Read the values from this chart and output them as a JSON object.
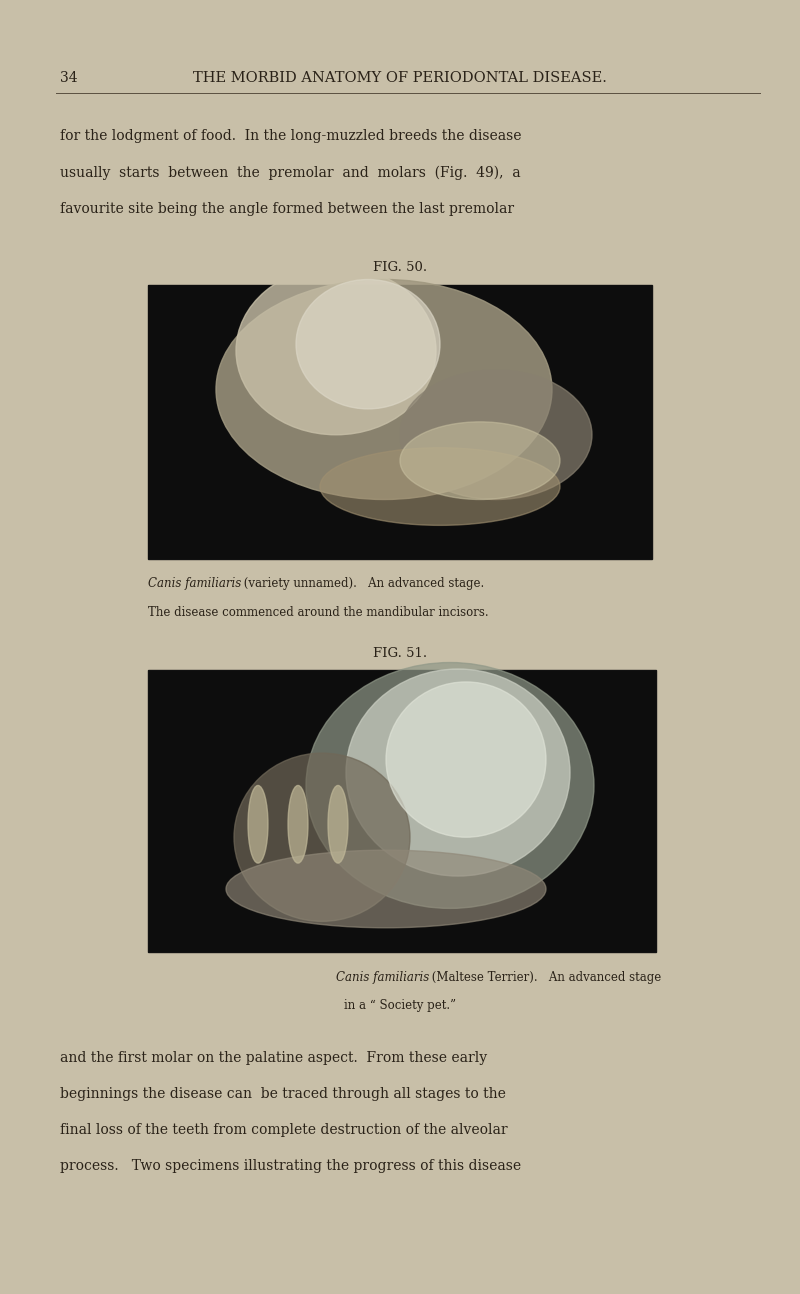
{
  "background_color": "#c8bfa8",
  "page_number": "34",
  "header_text": "THE MORBID ANATOMY OF PERIODONTAL DISEASE.",
  "para1_lines": [
    "for the lodgment of food.  In the long-muzzled breeds the disease",
    "usually  starts  between  the  premolar  and  molars  (Fig.  49),  a",
    "favourite site being the angle formed between the last premolar"
  ],
  "fig50_label": "FIG. 50.",
  "fig50_caption_line1_italic": "Canis familiaris",
  "fig50_caption_line1_normal": " (variety unnamed).   An advanced stage.",
  "fig50_caption_line2": "The disease commenced around the mandibular incisors.",
  "fig51_label": "FIG. 51.",
  "fig51_caption_line1_italic": "Canis familiaris",
  "fig51_caption_line1_normal": " (Maltese Terrier).   An advanced stage",
  "fig51_caption_line2": "in a “ Society pet.”",
  "para2_lines": [
    "and the first molar on the palatine aspect.  From these early",
    "beginnings the disease can  be traced through all stages to the",
    "final loss of the teeth from complete destruction of the alveolar",
    "process.   Two specimens illustrating the progress of this disease"
  ],
  "text_color": "#2a2218",
  "header_color": "#2a2218",
  "line_color": "#5a5040"
}
